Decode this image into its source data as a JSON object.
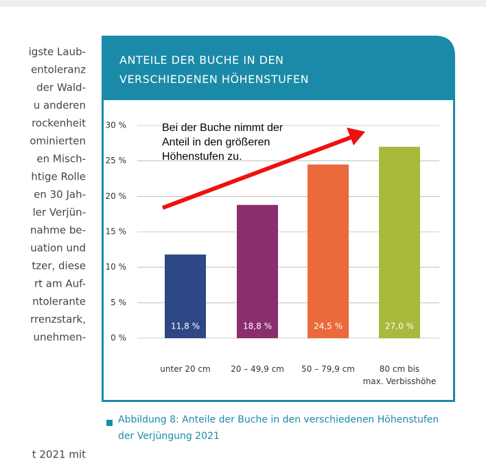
{
  "side_text": {
    "lines": [
      "igste Laub-",
      "entoleranz",
      "der Wald-",
      "u anderen",
      "rockenheit",
      "ominierten",
      "en Misch-",
      "htige Rolle",
      "en 30 Jah-",
      "ler Verjün-",
      "nahme be-",
      "uation und",
      "tzer, diese",
      "rt am Auf-",
      "ntolerante",
      "rrenzstark,",
      "unehmen-",
      "t 2021 mit"
    ]
  },
  "chart_data": {
    "type": "bar",
    "title": "ANTEILE DER BUCHE IN DEN\nVERSCHIEDENEN HÖHENSTUFEN",
    "annotation": "Bei der Buche nimmt der\nAnteil in den größeren\nHöhenstufen zu.",
    "categories": [
      "unter 20 cm",
      "20 – 49,9 cm",
      "50 – 79,9 cm",
      "80 cm bis\nmax. Verbisshöhe"
    ],
    "values": [
      11.8,
      18.8,
      24.5,
      27.0
    ],
    "value_labels": [
      "11,8 %",
      "18,8 %",
      "24,5 %",
      "27,0 %"
    ],
    "colors": [
      "#2e4785",
      "#8a2e6e",
      "#ea6a3b",
      "#a8b93c"
    ],
    "ylim": [
      0,
      30
    ],
    "yticks": [
      {
        "value": 0,
        "label": "0 %"
      },
      {
        "value": 5,
        "label": "5 %"
      },
      {
        "value": 10,
        "label": "10 %"
      },
      {
        "value": 15,
        "label": "15 %"
      },
      {
        "value": 20,
        "label": "20 %"
      },
      {
        "value": 25,
        "label": "25 %"
      },
      {
        "value": 30,
        "label": "30 %"
      }
    ],
    "grid": true
  },
  "caption": "Abbildung 8: Anteile der Buche in den verschiedenen Höhenstufen\nder Verjüngung 2021"
}
